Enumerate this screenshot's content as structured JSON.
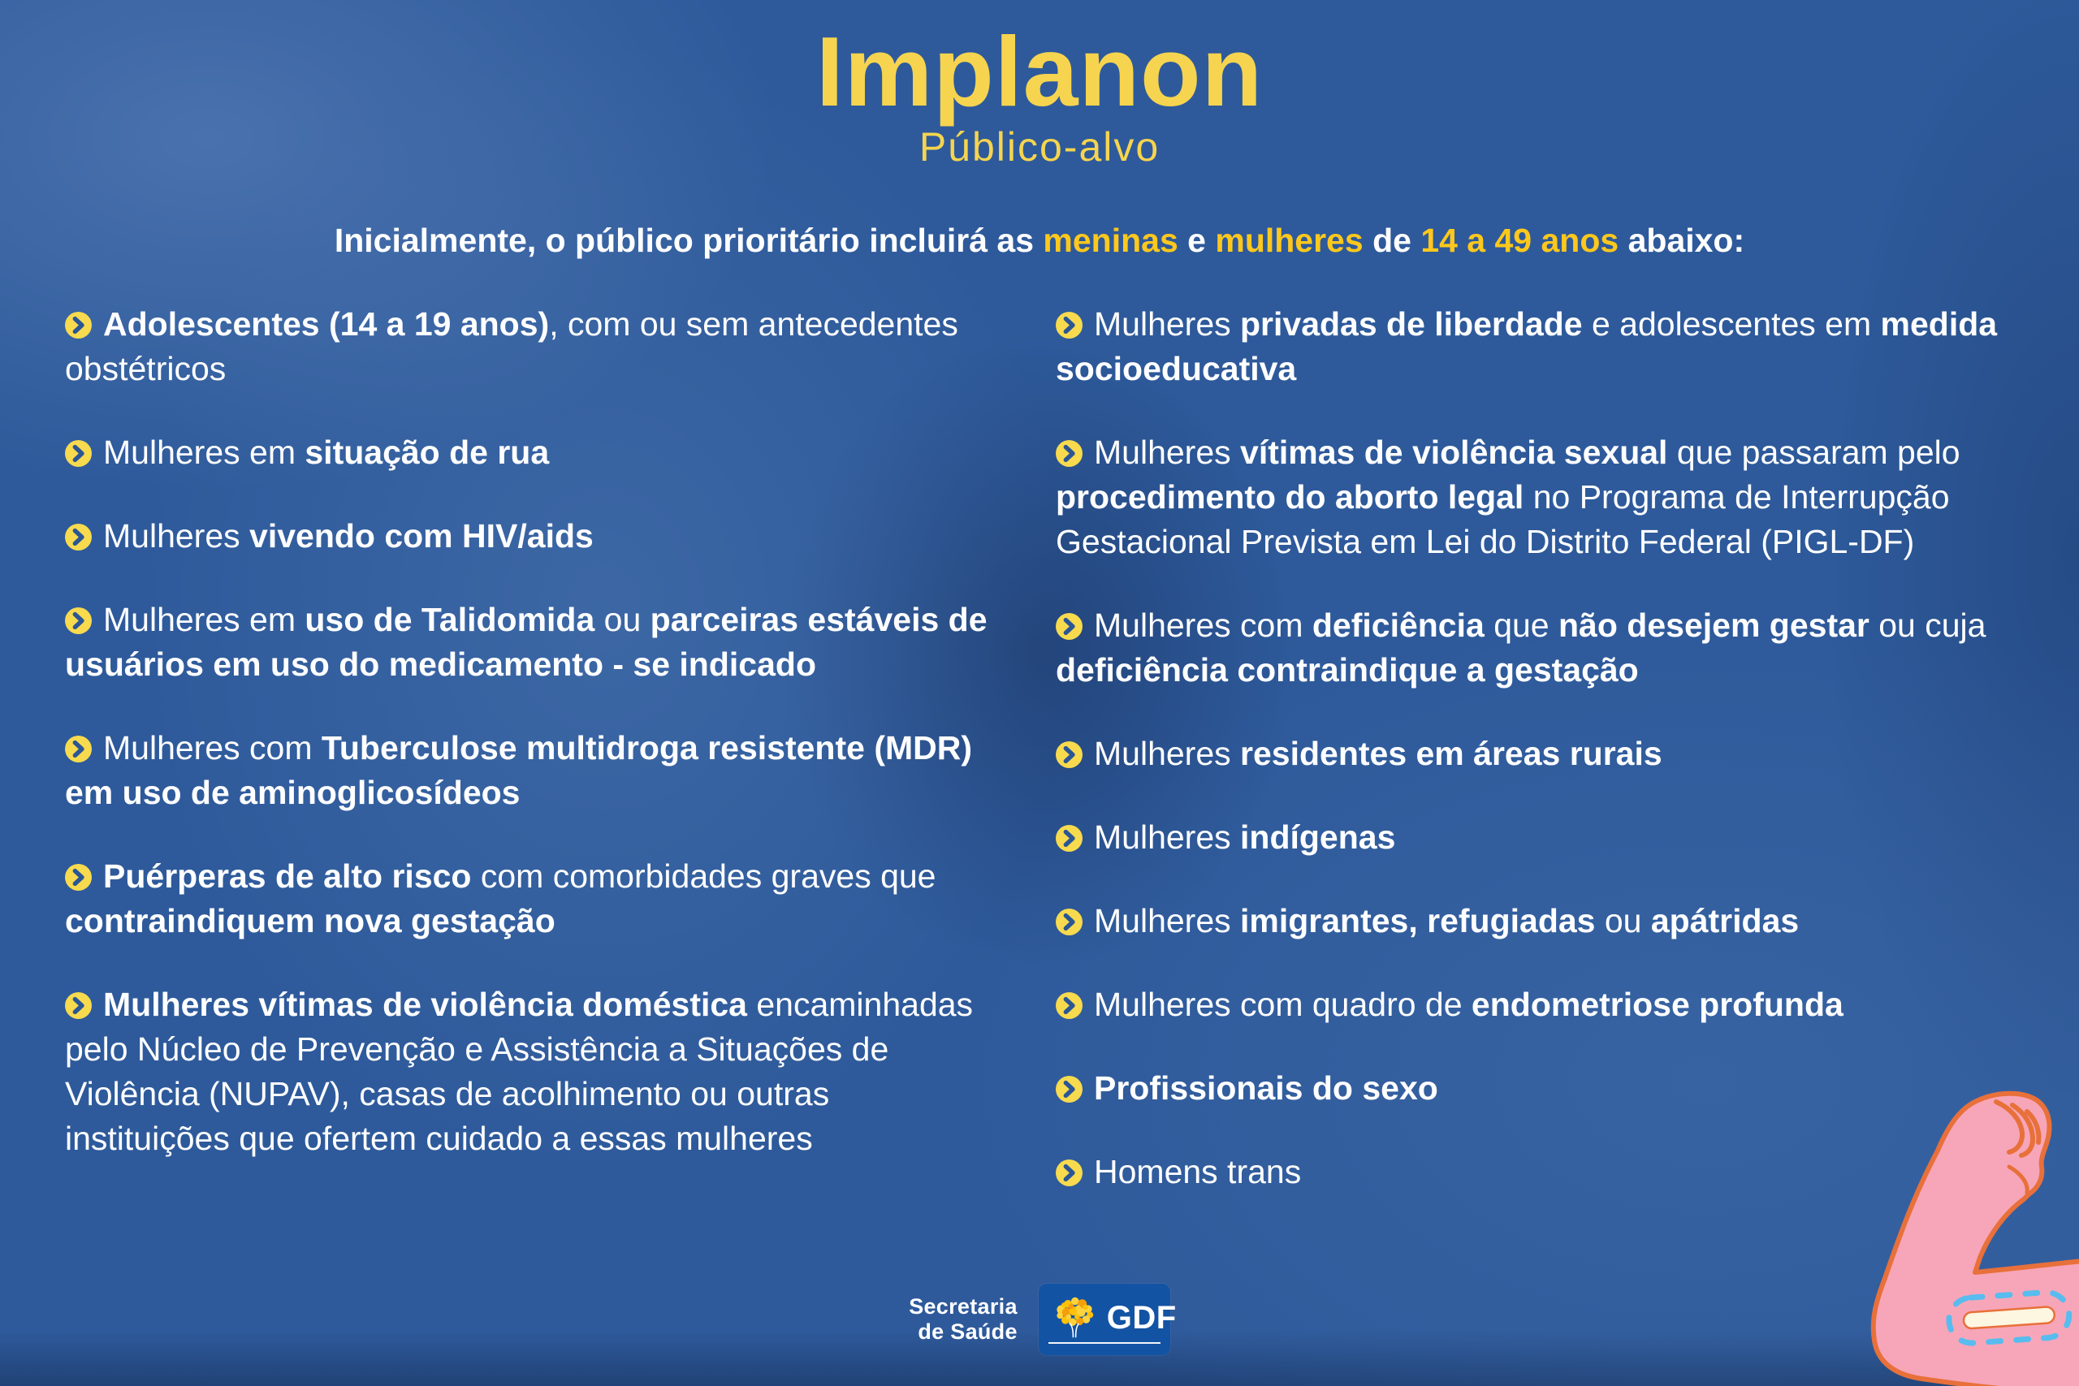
{
  "colors": {
    "background": "#2e5a9b",
    "title_yellow": "#f6d44f",
    "highlight_yellow": "#ffc81d",
    "text_white": "#ffffff",
    "bullet_yellow": "#f8da4e",
    "bullet_chevron_blue": "#2b5695",
    "gdf_box_blue": "#1253a4",
    "arm_pink": "#f7a6b9",
    "arm_outline_orange": "#e8703a",
    "implant_cream": "#fdf6e0",
    "implant_dash_blue": "#58bcef"
  },
  "header": {
    "title": "Implanon",
    "subtitle": "Público-alvo"
  },
  "intro": {
    "segments": [
      {
        "t": "Inicialmente, o público prioritário incluirá as ",
        "b": true
      },
      {
        "t": "meninas",
        "b": true,
        "y": true
      },
      {
        "t": " e ",
        "b": true
      },
      {
        "t": "mulheres",
        "b": true,
        "y": true
      },
      {
        "t": " de ",
        "b": true
      },
      {
        "t": "14 a 49 anos",
        "b": true,
        "y": true
      },
      {
        "t": " abaixo:",
        "b": true
      }
    ]
  },
  "left_column": [
    {
      "segments": [
        {
          "t": "Adolescentes (14 a 19 anos)",
          "b": true
        },
        {
          "t": ", com ou sem antecedentes obstétricos",
          "b": false
        }
      ]
    },
    {
      "segments": [
        {
          "t": "Mulheres em ",
          "b": false
        },
        {
          "t": "situação de rua",
          "b": true
        }
      ]
    },
    {
      "segments": [
        {
          "t": "Mulheres ",
          "b": false
        },
        {
          "t": "vivendo com HIV/aids",
          "b": true
        }
      ]
    },
    {
      "segments": [
        {
          "t": "Mulheres em ",
          "b": false
        },
        {
          "t": "uso de Talidomida",
          "b": true
        },
        {
          "t": " ou ",
          "b": false
        },
        {
          "t": "parceiras estáveis de usuários em uso do medicamento - se indicado",
          "b": true
        }
      ]
    },
    {
      "segments": [
        {
          "t": "Mulheres com ",
          "b": false
        },
        {
          "t": "Tuberculose multidroga resistente (MDR) em uso de aminoglicosídeos",
          "b": true
        }
      ]
    },
    {
      "segments": [
        {
          "t": "Puérperas de alto risco",
          "b": true
        },
        {
          "t": " com comorbidades graves que ",
          "b": false
        },
        {
          "t": "contraindiquem nova gestação",
          "b": true
        }
      ]
    },
    {
      "segments": [
        {
          "t": "Mulheres vítimas de violência doméstica",
          "b": true
        },
        {
          "t": " encaminhadas pelo Núcleo de Prevenção e Assistência a Situações de Violência (NUPAV), casas de acolhimento ou outras instituições que ofertem cuidado a essas mulheres",
          "b": false
        }
      ]
    }
  ],
  "right_column": [
    {
      "segments": [
        {
          "t": "Mulheres ",
          "b": false
        },
        {
          "t": "privadas de liberdade",
          "b": true
        },
        {
          "t": " e adolescentes em ",
          "b": false
        },
        {
          "t": "medida socioeducativa",
          "b": true
        }
      ]
    },
    {
      "segments": [
        {
          "t": "Mulheres ",
          "b": false
        },
        {
          "t": "vítimas de violência sexual",
          "b": true
        },
        {
          "t": " que passaram pelo ",
          "b": false
        },
        {
          "t": "procedimento do aborto legal",
          "b": true
        },
        {
          "t": " no Programa de Interrupção Gestacional Prevista em Lei do Distrito Federal (PIGL-DF)",
          "b": false
        }
      ]
    },
    {
      "segments": [
        {
          "t": "Mulheres com ",
          "b": false
        },
        {
          "t": "deficiência",
          "b": true
        },
        {
          "t": " que ",
          "b": false
        },
        {
          "t": "não desejem gestar",
          "b": true
        },
        {
          "t": " ou cuja ",
          "b": false
        },
        {
          "t": "deficiência contraindique a gestação",
          "b": true
        }
      ]
    },
    {
      "segments": [
        {
          "t": "Mulheres ",
          "b": false
        },
        {
          "t": "residentes em áreas rurais",
          "b": true
        }
      ]
    },
    {
      "segments": [
        {
          "t": "Mulheres ",
          "b": false
        },
        {
          "t": "indígenas",
          "b": true
        }
      ]
    },
    {
      "segments": [
        {
          "t": "Mulheres ",
          "b": false
        },
        {
          "t": "imigrantes, refugiadas",
          "b": true
        },
        {
          "t": " ou ",
          "b": false
        },
        {
          "t": "apátridas",
          "b": true
        }
      ]
    },
    {
      "segments": [
        {
          "t": "Mulheres com quadro de ",
          "b": false
        },
        {
          "t": "endometriose profunda",
          "b": true
        }
      ]
    },
    {
      "segments": [
        {
          "t": "Profissionais do sexo",
          "b": true
        }
      ]
    },
    {
      "segments": [
        {
          "t": "Homens trans",
          "b": false
        }
      ]
    }
  ],
  "footer": {
    "org_name_line1": "Secretaria",
    "org_name_line2": "de Saúde",
    "gov_logo_label": "GDF"
  }
}
